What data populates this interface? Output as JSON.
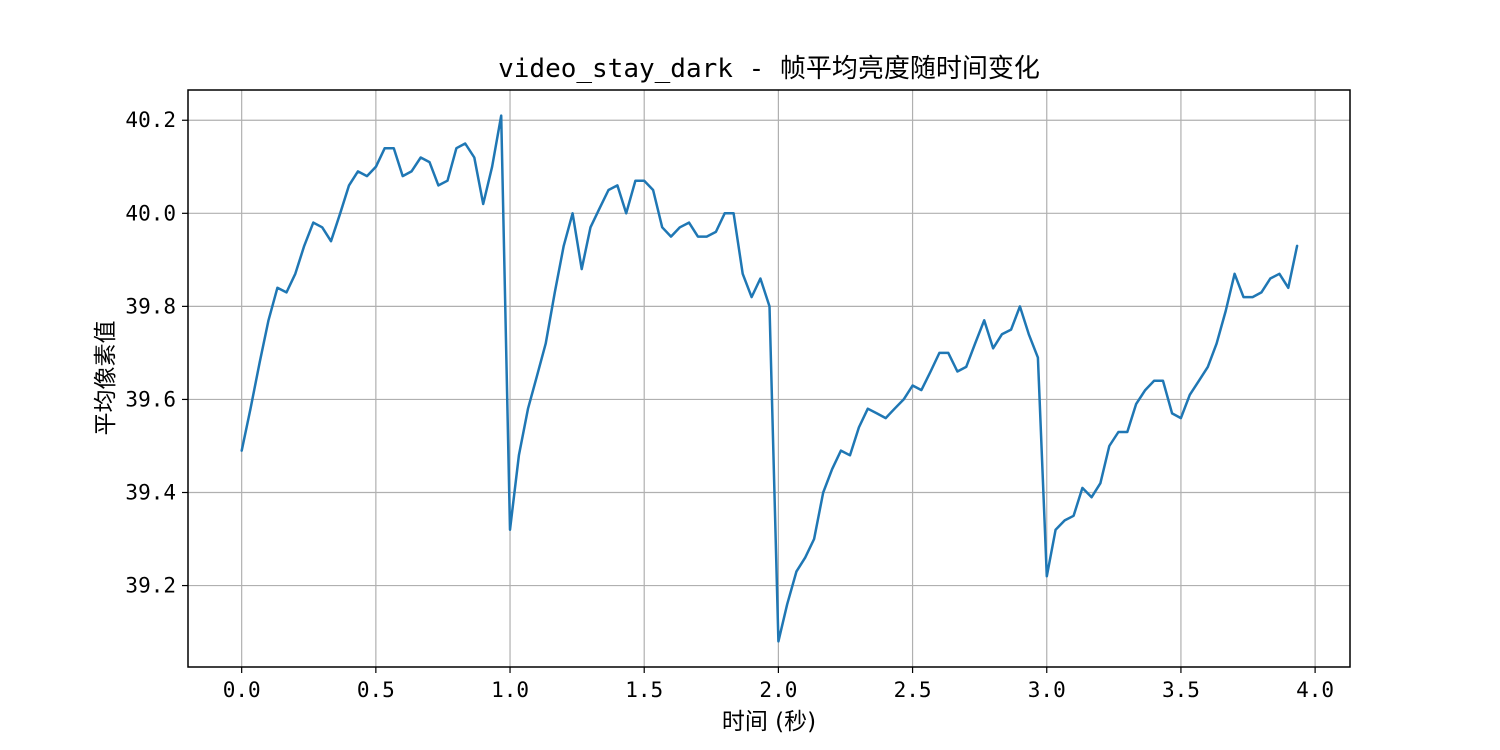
{
  "chart_data": {
    "type": "line",
    "title": "video_stay_dark - 帧平均亮度随时间变化",
    "xlabel": "时间 (秒)",
    "ylabel": "平均像素值",
    "xlim": [
      -0.2,
      4.13
    ],
    "ylim": [
      39.025,
      40.265
    ],
    "xticks": [
      0.0,
      0.5,
      1.0,
      1.5,
      2.0,
      2.5,
      3.0,
      3.5,
      4.0
    ],
    "xtick_labels": [
      "0.0",
      "0.5",
      "1.0",
      "1.5",
      "2.0",
      "2.5",
      "3.0",
      "3.5",
      "4.0"
    ],
    "yticks": [
      39.2,
      39.4,
      39.6,
      39.8,
      40.0,
      40.2
    ],
    "ytick_labels": [
      "39.2",
      "39.4",
      "39.6",
      "39.8",
      "40.0",
      "40.2"
    ],
    "grid": true,
    "color": "#1f77b4",
    "series": [
      {
        "x": [
          0.0,
          0.033,
          0.067,
          0.1,
          0.133,
          0.167,
          0.2,
          0.233,
          0.267,
          0.3,
          0.333,
          0.367,
          0.4,
          0.433,
          0.467,
          0.5,
          0.533,
          0.567,
          0.6,
          0.633,
          0.667,
          0.7,
          0.733,
          0.767,
          0.8,
          0.833,
          0.867,
          0.9,
          0.933,
          0.967,
          1.0,
          1.033,
          1.067,
          1.1,
          1.133,
          1.167,
          1.2,
          1.233,
          1.267,
          1.3,
          1.333,
          1.367,
          1.4,
          1.433,
          1.467,
          1.5,
          1.533,
          1.567,
          1.6,
          1.633,
          1.667,
          1.7,
          1.733,
          1.767,
          1.8,
          1.833,
          1.867,
          1.9,
          1.933,
          1.967,
          2.0,
          2.033,
          2.067,
          2.1,
          2.133,
          2.167,
          2.2,
          2.233,
          2.267,
          2.3,
          2.333,
          2.367,
          2.4,
          2.433,
          2.467,
          2.5,
          2.533,
          2.567,
          2.6,
          2.633,
          2.667,
          2.7,
          2.733,
          2.767,
          2.8,
          2.833,
          2.867,
          2.9,
          2.933,
          2.967,
          3.0,
          3.033,
          3.067,
          3.1,
          3.133,
          3.167,
          3.2,
          3.233,
          3.267,
          3.3,
          3.333,
          3.367,
          3.4,
          3.433,
          3.467,
          3.5,
          3.533,
          3.567,
          3.6,
          3.633,
          3.667,
          3.7,
          3.733,
          3.767,
          3.8,
          3.833,
          3.867,
          3.9,
          3.933
        ],
        "values": [
          39.49,
          39.58,
          39.68,
          39.77,
          39.84,
          39.83,
          39.87,
          39.93,
          39.98,
          39.97,
          39.94,
          40.0,
          40.06,
          40.09,
          40.08,
          40.1,
          40.14,
          40.14,
          40.08,
          40.09,
          40.12,
          40.11,
          40.06,
          40.07,
          40.14,
          40.15,
          40.12,
          40.02,
          40.1,
          40.21,
          39.32,
          39.48,
          39.58,
          39.65,
          39.72,
          39.83,
          39.93,
          40.0,
          39.88,
          39.97,
          40.01,
          40.05,
          40.06,
          40.0,
          40.07,
          40.07,
          40.05,
          39.97,
          39.95,
          39.97,
          39.98,
          39.95,
          39.95,
          39.96,
          40.0,
          40.0,
          39.87,
          39.82,
          39.86,
          39.8,
          39.08,
          39.16,
          39.23,
          39.26,
          39.3,
          39.4,
          39.45,
          39.49,
          39.48,
          39.54,
          39.58,
          39.57,
          39.56,
          39.58,
          39.6,
          39.63,
          39.62,
          39.66,
          39.7,
          39.7,
          39.66,
          39.67,
          39.72,
          39.77,
          39.71,
          39.74,
          39.75,
          39.8,
          39.74,
          39.69,
          39.22,
          39.32,
          39.34,
          39.35,
          39.41,
          39.39,
          39.42,
          39.5,
          39.53,
          39.53,
          39.59,
          39.62,
          39.64,
          39.64,
          39.57,
          39.56,
          39.61,
          39.64,
          39.67,
          39.72,
          39.79,
          39.87,
          39.82,
          39.82,
          39.83,
          39.86,
          39.87,
          39.84,
          39.93
        ]
      }
    ]
  }
}
